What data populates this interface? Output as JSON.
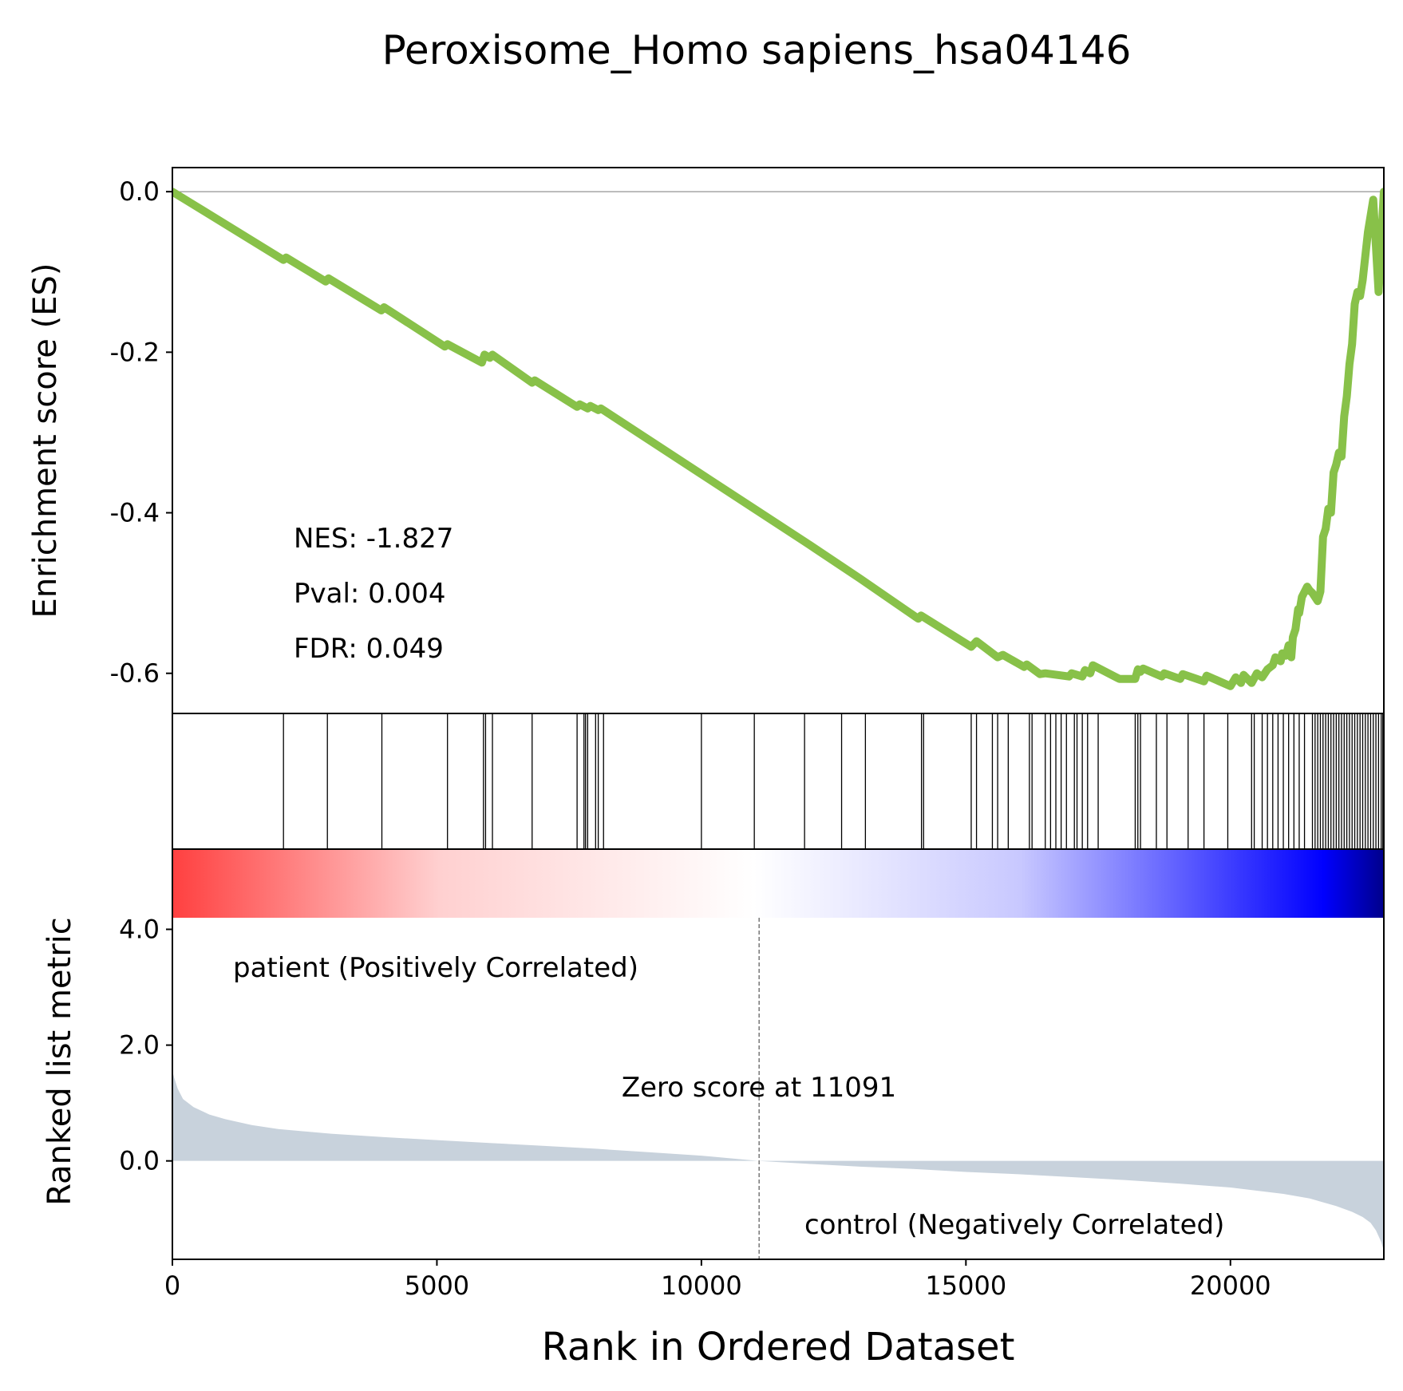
{
  "chart_data": {
    "type": "line",
    "title": "Peroxisome_Homo sapiens_hsa04146",
    "xlabel": "Rank in Ordered Dataset",
    "x_ticks": [
      0,
      5000,
      10000,
      15000,
      20000
    ],
    "xlim": [
      0,
      22900
    ],
    "es_panel": {
      "ylabel": "Enrichment score (ES)",
      "ylim": [
        -0.65,
        0.03
      ],
      "y_ticks": [
        0.0,
        -0.2,
        -0.4,
        -0.6
      ],
      "y_tick_labels": [
        "0.0",
        "-0.2",
        "-0.4",
        "-0.6"
      ],
      "line_color": "#88c149",
      "stats": {
        "nes": "NES: -1.827",
        "pval": "Pval: 0.004",
        "fdr": "FDR: 0.049"
      },
      "es_curve": {
        "x": [
          0,
          2100,
          2150,
          2900,
          2950,
          3950,
          4000,
          5150,
          5200,
          5850,
          5900,
          6000,
          6050,
          6800,
          6850,
          7650,
          7700,
          7850,
          7900,
          8050,
          8100,
          10000,
          12000,
          13000,
          14100,
          14150,
          15100,
          15200,
          15600,
          15700,
          16100,
          16150,
          16400,
          16500,
          16950,
          17000,
          17200,
          17250,
          17350,
          17400,
          17900,
          18200,
          18250,
          18300,
          18350,
          18700,
          18750,
          19050,
          19100,
          19500,
          19550,
          20000,
          20100,
          20200,
          20250,
          20400,
          20500,
          20600,
          20700,
          20800,
          20850,
          20950,
          20980,
          21050,
          21100,
          21150,
          21180,
          21230,
          21280,
          21300,
          21350,
          21450,
          21500,
          21550,
          21600,
          21650,
          21700,
          21750,
          21800,
          21850,
          21900,
          21950,
          22000,
          22050,
          22100,
          22150,
          22200,
          22250,
          22300,
          22350,
          22400,
          22450,
          22500,
          22550,
          22600,
          22650,
          22700,
          22800,
          22900
        ],
        "y": [
          0.0,
          -0.085,
          -0.082,
          -0.112,
          -0.108,
          -0.148,
          -0.144,
          -0.193,
          -0.19,
          -0.213,
          -0.203,
          -0.207,
          -0.203,
          -0.238,
          -0.235,
          -0.268,
          -0.265,
          -0.27,
          -0.267,
          -0.272,
          -0.27,
          -0.352,
          -0.438,
          -0.482,
          -0.532,
          -0.528,
          -0.567,
          -0.56,
          -0.58,
          -0.577,
          -0.592,
          -0.589,
          -0.601,
          -0.6,
          -0.604,
          -0.6,
          -0.604,
          -0.596,
          -0.6,
          -0.59,
          -0.607,
          -0.607,
          -0.595,
          -0.598,
          -0.594,
          -0.604,
          -0.6,
          -0.607,
          -0.601,
          -0.61,
          -0.603,
          -0.616,
          -0.605,
          -0.612,
          -0.602,
          -0.612,
          -0.6,
          -0.605,
          -0.595,
          -0.59,
          -0.58,
          -0.585,
          -0.575,
          -0.578,
          -0.565,
          -0.58,
          -0.555,
          -0.545,
          -0.52,
          -0.525,
          -0.505,
          -0.492,
          -0.497,
          -0.5,
          -0.505,
          -0.51,
          -0.498,
          -0.43,
          -0.42,
          -0.395,
          -0.4,
          -0.35,
          -0.34,
          -0.325,
          -0.33,
          -0.28,
          -0.255,
          -0.215,
          -0.19,
          -0.14,
          -0.125,
          -0.13,
          -0.11,
          -0.08,
          -0.05,
          -0.03,
          -0.01,
          -0.125,
          0.0
        ]
      }
    },
    "hits_panel": {
      "hit_ranks": [
        2100,
        2930,
        3960,
        5200,
        5880,
        5920,
        6050,
        6800,
        7650,
        7780,
        7810,
        7850,
        8000,
        8050,
        8150,
        10000,
        11000,
        11950,
        12650,
        13100,
        14160,
        14200,
        15100,
        15200,
        15500,
        15600,
        15800,
        16200,
        16250,
        16500,
        16600,
        16700,
        16800,
        16900,
        17050,
        17100,
        17200,
        17300,
        17500,
        18200,
        18250,
        18300,
        18600,
        18800,
        19200,
        19500,
        19950,
        20400,
        20450,
        20600,
        20700,
        20800,
        20900,
        21000,
        21100,
        21200,
        21300,
        21400,
        21550,
        21600,
        21650,
        21700,
        21750,
        21800,
        21850,
        21900,
        21950,
        22000,
        22050,
        22100,
        22150,
        22200,
        22250,
        22300,
        22350,
        22400,
        22450,
        22500,
        22550,
        22600,
        22650,
        22700,
        22750,
        22800,
        22850,
        22880
      ],
      "gradient_colors": [
        "#ff4040",
        "#ffd0d0",
        "#ffffff",
        "#c8c8ff",
        "#0000ff",
        "#00008b"
      ]
    },
    "metric_panel": {
      "ylabel": "Ranked list metric",
      "ylim": [
        -1.7,
        4.2
      ],
      "y_ticks": [
        0.0,
        2.0,
        4.0
      ],
      "y_tick_labels": [
        "0.0",
        "2.0",
        "4.0"
      ],
      "fill_color": "#c8d2dc",
      "zero_score_rank": 11091,
      "zero_score_label": "Zero score at 11091",
      "pos_label": "patient (Positively Correlated)",
      "pos_color": "#ff0000",
      "neg_label": "control (Negatively Correlated)",
      "neg_color": "#0000ff",
      "metric_curve": {
        "x": [
          0,
          30,
          100,
          200,
          400,
          700,
          1000,
          1500,
          2000,
          3000,
          4000,
          5000,
          6000,
          7000,
          8000,
          9000,
          10000,
          11091,
          12000,
          13000,
          14000,
          15000,
          16000,
          17000,
          18000,
          19000,
          20000,
          21000,
          21500,
          22000,
          22300,
          22500,
          22650,
          22750,
          22850,
          22900
        ],
        "y": [
          1.55,
          1.45,
          1.25,
          1.07,
          0.93,
          0.8,
          0.72,
          0.62,
          0.55,
          0.47,
          0.41,
          0.36,
          0.31,
          0.26,
          0.21,
          0.15,
          0.09,
          0.0,
          -0.05,
          -0.1,
          -0.14,
          -0.19,
          -0.23,
          -0.28,
          -0.33,
          -0.39,
          -0.46,
          -0.57,
          -0.65,
          -0.78,
          -0.88,
          -0.97,
          -1.07,
          -1.2,
          -1.4,
          -1.55
        ]
      }
    }
  }
}
